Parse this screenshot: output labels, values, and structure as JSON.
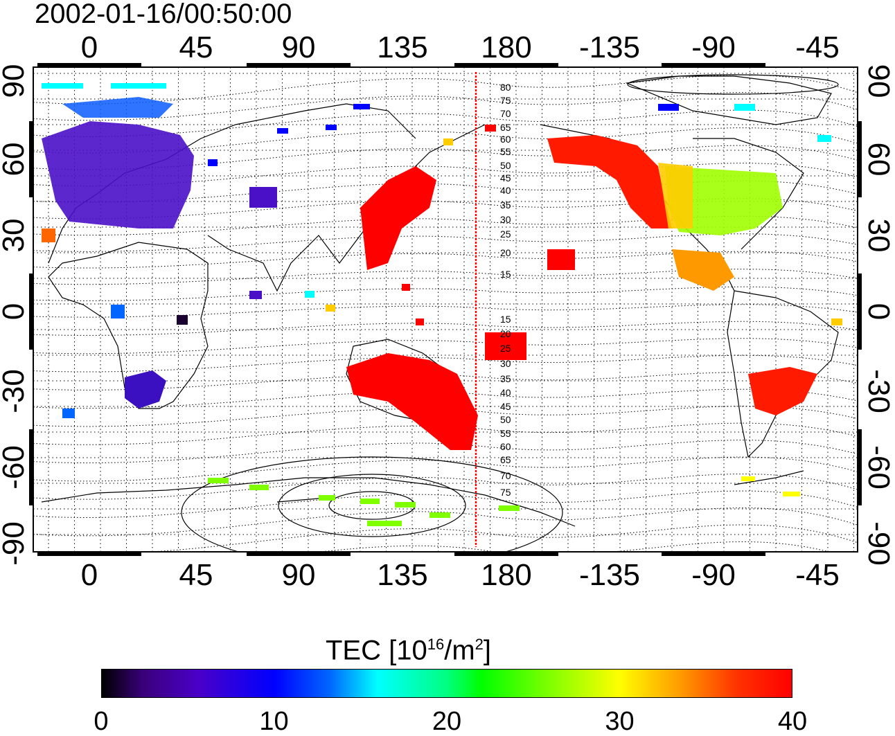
{
  "title": "2002-01-16/00:50:00",
  "map": {
    "lon_ticks_top": [
      "0",
      "45",
      "90",
      "135",
      "180",
      "-135",
      "-90",
      "-45"
    ],
    "lon_ticks_bottom": [
      "0",
      "45",
      "90",
      "135",
      "180",
      "-135",
      "-90",
      "-45"
    ],
    "lat_ticks_left": [
      "90",
      "60",
      "30",
      "0",
      "-30",
      "-60",
      "-90"
    ],
    "lat_ticks_right": [
      "90",
      "60",
      "30",
      "0",
      "-30",
      "-60",
      "-90"
    ],
    "contour_labels_north": [
      "80",
      "75",
      "70",
      "65",
      "60",
      "55",
      "50",
      "45",
      "40",
      "35",
      "30",
      "25",
      "20",
      "15"
    ],
    "contour_labels_south": [
      "15",
      "20",
      "25",
      "30",
      "35",
      "40",
      "45",
      "50",
      "55",
      "60",
      "65",
      "70",
      "75"
    ],
    "terminator_color": "#ff0000"
  },
  "tec_regions": [
    {
      "name": "europe",
      "color": "#4a10c8",
      "level": 8
    },
    {
      "name": "north-america-west",
      "color": "#ff1a00",
      "level": 39
    },
    {
      "name": "north-america-east",
      "color": "#a0ff00",
      "level": 27
    },
    {
      "name": "east-asia",
      "color": "#ff0000",
      "level": 40
    },
    {
      "name": "australia",
      "color": "#ff0000",
      "level": 40
    },
    {
      "name": "south-america",
      "color": "#ff1a00",
      "level": 38
    },
    {
      "name": "southern-africa",
      "color": "#3a10c0",
      "level": 8
    },
    {
      "name": "antarctica",
      "color": "#80ff00",
      "level": 24
    }
  ],
  "colorbar": {
    "title_text": "TEC  [10",
    "title_sup1": "16",
    "title_mid": "/m",
    "title_sup2": "2",
    "title_end": "]",
    "ticks": [
      "0",
      "10",
      "20",
      "30",
      "40"
    ],
    "min": 0,
    "max": 40
  }
}
